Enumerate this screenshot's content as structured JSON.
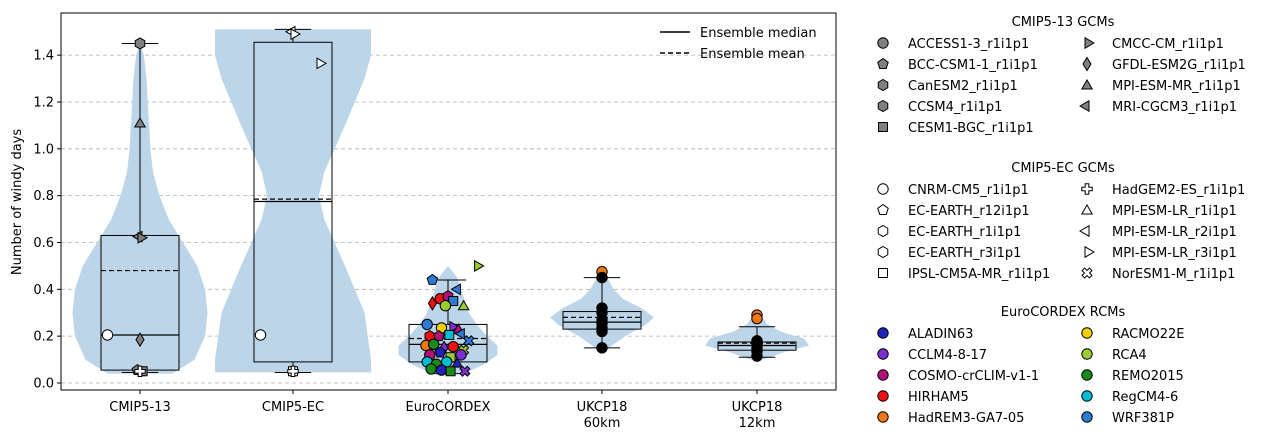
{
  "chart_data": {
    "type": "violin",
    "title": "",
    "ylabel": "Number of windy days",
    "xlabel": "",
    "ylim": [
      -0.03,
      1.58
    ],
    "yticks": [
      0.0,
      0.2,
      0.4,
      0.6,
      0.8,
      1.0,
      1.2,
      1.4
    ],
    "grid": "horizontal dashed",
    "categories": [
      {
        "label": "CMIP5-13",
        "label2": ""
      },
      {
        "label": "CMIP5-EC",
        "label2": ""
      },
      {
        "label": "EuroCORDEX",
        "label2": ""
      },
      {
        "label": "UKCP18",
        "label2": "60km"
      },
      {
        "label": "UKCP18",
        "label2": "12km"
      }
    ],
    "line_legend": {
      "placement": "top-right",
      "median_label": "Ensemble median",
      "mean_label": "Ensemble mean"
    },
    "boxes": [
      {
        "q1": 0.055,
        "median": 0.205,
        "q3": 0.63,
        "mean": 0.48,
        "wlow": 0.045,
        "whigh": 1.45
      },
      {
        "q1": 0.09,
        "median": 0.775,
        "q3": 1.455,
        "mean": 0.785,
        "wlow": 0.045,
        "whigh": 1.51
      },
      {
        "q1": 0.09,
        "median": 0.165,
        "q3": 0.25,
        "mean": 0.19,
        "wlow": 0.04,
        "whigh": 0.44
      },
      {
        "q1": 0.23,
        "median": 0.26,
        "q3": 0.305,
        "mean": 0.28,
        "wlow": 0.15,
        "whigh": 0.45
      },
      {
        "q1": 0.14,
        "median": 0.16,
        "q3": 0.175,
        "mean": 0.17,
        "wlow": 0.11,
        "whigh": 0.24
      }
    ],
    "violins": [
      {
        "ys": [
          0.04,
          0.1,
          0.2,
          0.3,
          0.4,
          0.5,
          0.6,
          0.7,
          0.8,
          0.9,
          1.0,
          1.1,
          1.2,
          1.3,
          1.4,
          1.45
        ],
        "ws": [
          0.25,
          0.42,
          0.5,
          0.52,
          0.5,
          0.44,
          0.33,
          0.22,
          0.15,
          0.1,
          0.08,
          0.07,
          0.06,
          0.05,
          0.03,
          0.0
        ]
      },
      {
        "ys": [
          0.045,
          0.1,
          0.3,
          0.5,
          0.7,
          0.8,
          0.9,
          1.1,
          1.3,
          1.4,
          1.51
        ],
        "ws": [
          0.6,
          0.6,
          0.55,
          0.4,
          0.24,
          0.2,
          0.24,
          0.4,
          0.55,
          0.6,
          0.6
        ]
      },
      {
        "ys": [
          0.04,
          0.08,
          0.12,
          0.16,
          0.2,
          0.25,
          0.3,
          0.35,
          0.4,
          0.45,
          0.5
        ],
        "ws": [
          0.12,
          0.28,
          0.38,
          0.38,
          0.3,
          0.22,
          0.16,
          0.13,
          0.1,
          0.07,
          0.0
        ]
      },
      {
        "ys": [
          0.15,
          0.2,
          0.25,
          0.28,
          0.32,
          0.36,
          0.4,
          0.45,
          0.48
        ],
        "ws": [
          0.05,
          0.18,
          0.34,
          0.4,
          0.3,
          0.16,
          0.09,
          0.04,
          0.0
        ]
      },
      {
        "ys": [
          0.1,
          0.13,
          0.16,
          0.19,
          0.22,
          0.25,
          0.28,
          0.3
        ],
        "ws": [
          0.05,
          0.2,
          0.4,
          0.36,
          0.18,
          0.08,
          0.04,
          0.0
        ]
      }
    ],
    "points": [
      {
        "cat": 0,
        "dx": 0.0,
        "y": 1.45,
        "marker": "hexagon",
        "color": "#808080"
      },
      {
        "cat": 0,
        "dx": 0.0,
        "y": 1.11,
        "marker": "triangle-up",
        "color": "#808080"
      },
      {
        "cat": 0,
        "dx": 0.0,
        "y": 0.625,
        "marker": "triangle-left",
        "color": "#808080"
      },
      {
        "cat": 0,
        "dx": 0.0,
        "y": 0.62,
        "marker": "triangle-right",
        "color": "#808080"
      },
      {
        "cat": 0,
        "dx": 0.0,
        "y": 0.185,
        "marker": "diamond",
        "color": "#808080"
      },
      {
        "cat": 0,
        "dx": -0.25,
        "y": 0.205,
        "marker": "circle",
        "color": "#ffffff"
      },
      {
        "cat": 0,
        "dx": -0.02,
        "y": 0.055,
        "marker": "pentagon",
        "color": "#808080"
      },
      {
        "cat": 0,
        "dx": 0.02,
        "y": 0.05,
        "marker": "square",
        "color": "#808080"
      },
      {
        "cat": 0,
        "dx": 0.0,
        "y": 0.05,
        "marker": "plus",
        "color": "#ffffff"
      },
      {
        "cat": 1,
        "dx": -0.25,
        "y": 0.205,
        "marker": "circle",
        "color": "#ffffff"
      },
      {
        "cat": 1,
        "dx": 0.0,
        "y": 1.5,
        "marker": "triangle-left",
        "color": "#ffffff"
      },
      {
        "cat": 1,
        "dx": 0.0,
        "y": 1.49,
        "marker": "triangle-right",
        "color": "#ffffff"
      },
      {
        "cat": 1,
        "dx": 0.2,
        "y": 1.365,
        "marker": "triangle-right",
        "color": "#ffffff"
      },
      {
        "cat": 1,
        "dx": 0.0,
        "y": 0.05,
        "marker": "square",
        "color": "#ffffff"
      },
      {
        "cat": 1,
        "dx": 0.0,
        "y": 0.05,
        "marker": "plus",
        "color": "#ffffff"
      },
      {
        "cat": 2,
        "dx": -0.12,
        "y": 0.44,
        "marker": "pentagon",
        "color": "#2e7bd6"
      },
      {
        "cat": 2,
        "dx": 0.22,
        "y": 0.5,
        "marker": "triangle-right",
        "color": "#9acd32"
      },
      {
        "cat": 2,
        "dx": 0.08,
        "y": 0.4,
        "marker": "triangle-left",
        "color": "#2e7bd6"
      },
      {
        "cat": 2,
        "dx": -0.12,
        "y": 0.34,
        "marker": "diamond",
        "color": "#ee1111"
      },
      {
        "cat": 2,
        "dx": -0.06,
        "y": 0.36,
        "marker": "circle",
        "color": "#ee1111"
      },
      {
        "cat": 2,
        "dx": 0.0,
        "y": 0.37,
        "marker": "hexagon",
        "color": "#b0127a"
      },
      {
        "cat": 2,
        "dx": 0.04,
        "y": 0.35,
        "marker": "square",
        "color": "#2e7bd6"
      },
      {
        "cat": 2,
        "dx": -0.02,
        "y": 0.33,
        "marker": "circle",
        "color": "#9acd32"
      },
      {
        "cat": 2,
        "dx": 0.12,
        "y": 0.33,
        "marker": "triangle-up",
        "color": "#9acd32"
      },
      {
        "cat": 2,
        "dx": -0.16,
        "y": 0.25,
        "marker": "circle",
        "color": "#2e7bd6"
      },
      {
        "cat": 2,
        "dx": -0.05,
        "y": 0.235,
        "marker": "circle",
        "color": "#f0d000"
      },
      {
        "cat": 2,
        "dx": 0.03,
        "y": 0.24,
        "marker": "triangle-right",
        "color": "#7b2fcf"
      },
      {
        "cat": 2,
        "dx": 0.08,
        "y": 0.23,
        "marker": "triangle-up",
        "color": "#b0127a"
      },
      {
        "cat": 2,
        "dx": -0.14,
        "y": 0.2,
        "marker": "hexagon",
        "color": "#ee1111"
      },
      {
        "cat": 2,
        "dx": -0.07,
        "y": 0.2,
        "marker": "pentagon",
        "color": "#b0127a"
      },
      {
        "cat": 2,
        "dx": 0.01,
        "y": 0.205,
        "marker": "square",
        "color": "#00bcd4"
      },
      {
        "cat": 2,
        "dx": 0.11,
        "y": 0.21,
        "marker": "triangle-left",
        "color": "#2e7bd6"
      },
      {
        "cat": 2,
        "dx": 0.16,
        "y": 0.18,
        "marker": "cross",
        "color": "#2e7bd6"
      },
      {
        "cat": 2,
        "dx": -0.17,
        "y": 0.16,
        "marker": "circle",
        "color": "#ee7711"
      },
      {
        "cat": 2,
        "dx": -0.11,
        "y": 0.165,
        "marker": "circle",
        "color": "#1a8a1a"
      },
      {
        "cat": 2,
        "dx": -0.03,
        "y": 0.15,
        "marker": "diamond",
        "color": "#7b2fcf"
      },
      {
        "cat": 2,
        "dx": 0.04,
        "y": 0.155,
        "marker": "circle",
        "color": "#ee1111"
      },
      {
        "cat": 2,
        "dx": 0.12,
        "y": 0.14,
        "marker": "cross",
        "color": "#9acd32"
      },
      {
        "cat": 2,
        "dx": -0.14,
        "y": 0.12,
        "marker": "circle",
        "color": "#b0127a"
      },
      {
        "cat": 2,
        "dx": -0.06,
        "y": 0.13,
        "marker": "pentagon",
        "color": "#2222bb"
      },
      {
        "cat": 2,
        "dx": 0.02,
        "y": 0.11,
        "marker": "square",
        "color": "#9acd32"
      },
      {
        "cat": 2,
        "dx": 0.1,
        "y": 0.12,
        "marker": "circle",
        "color": "#7b2fcf"
      },
      {
        "cat": 2,
        "dx": -0.16,
        "y": 0.09,
        "marker": "circle",
        "color": "#00bcd4"
      },
      {
        "cat": 2,
        "dx": -0.09,
        "y": 0.08,
        "marker": "circle",
        "color": "#1a8a1a"
      },
      {
        "cat": 2,
        "dx": -0.01,
        "y": 0.09,
        "marker": "circle",
        "color": "#00bcd4"
      },
      {
        "cat": 2,
        "dx": 0.07,
        "y": 0.085,
        "marker": "triangle-up",
        "color": "#2222bb"
      },
      {
        "cat": 2,
        "dx": -0.13,
        "y": 0.06,
        "marker": "circle",
        "color": "#1a8a1a"
      },
      {
        "cat": 2,
        "dx": -0.05,
        "y": 0.055,
        "marker": "circle",
        "color": "#2222bb"
      },
      {
        "cat": 2,
        "dx": 0.02,
        "y": 0.05,
        "marker": "square",
        "color": "#1a8a1a"
      },
      {
        "cat": 2,
        "dx": 0.13,
        "y": 0.05,
        "marker": "cross",
        "color": "#7b2fcf"
      },
      {
        "cat": 3,
        "dx": 0.0,
        "y": 0.475,
        "marker": "circle",
        "color": "#ee7711"
      },
      {
        "cat": 3,
        "dx": 0.0,
        "y": 0.45,
        "marker": "circle",
        "color": "#000000"
      },
      {
        "cat": 3,
        "dx": 0.0,
        "y": 0.32,
        "marker": "circle",
        "color": "#000000"
      },
      {
        "cat": 3,
        "dx": 0.0,
        "y": 0.3,
        "marker": "circle",
        "color": "#000000"
      },
      {
        "cat": 3,
        "dx": 0.0,
        "y": 0.27,
        "marker": "circle",
        "color": "#000000"
      },
      {
        "cat": 3,
        "dx": 0.0,
        "y": 0.255,
        "marker": "circle",
        "color": "#000000"
      },
      {
        "cat": 3,
        "dx": 0.0,
        "y": 0.235,
        "marker": "circle",
        "color": "#000000"
      },
      {
        "cat": 3,
        "dx": 0.0,
        "y": 0.22,
        "marker": "circle",
        "color": "#000000"
      },
      {
        "cat": 3,
        "dx": 0.0,
        "y": 0.15,
        "marker": "circle",
        "color": "#000000"
      },
      {
        "cat": 4,
        "dx": 0.0,
        "y": 0.29,
        "marker": "circle",
        "color": "#ee7711"
      },
      {
        "cat": 4,
        "dx": 0.0,
        "y": 0.275,
        "marker": "circle",
        "color": "#ee7711"
      },
      {
        "cat": 4,
        "dx": 0.0,
        "y": 0.18,
        "marker": "circle",
        "color": "#000000"
      },
      {
        "cat": 4,
        "dx": 0.0,
        "y": 0.165,
        "marker": "circle",
        "color": "#000000"
      },
      {
        "cat": 4,
        "dx": 0.0,
        "y": 0.15,
        "marker": "circle",
        "color": "#000000"
      },
      {
        "cat": 4,
        "dx": 0.0,
        "y": 0.135,
        "marker": "circle",
        "color": "#000000"
      },
      {
        "cat": 4,
        "dx": 0.0,
        "y": 0.115,
        "marker": "circle",
        "color": "#000000"
      }
    ],
    "legends": [
      {
        "title": "CMIP5-13 GCMs",
        "items": [
          {
            "label": "ACCESS1-3_r1i1p1",
            "marker": "circle",
            "color": "#808080"
          },
          {
            "label": "CMCC-CM_r1i1p1",
            "marker": "triangle-right",
            "color": "#808080"
          },
          {
            "label": "BCC-CSM1-1_r1i1p1",
            "marker": "pentagon",
            "color": "#808080"
          },
          {
            "label": "GFDL-ESM2G_r1i1p1",
            "marker": "diamond",
            "color": "#808080"
          },
          {
            "label": "CanESM2_r1i1p1",
            "marker": "hexagon",
            "color": "#808080"
          },
          {
            "label": "MPI-ESM-MR_r1i1p1",
            "marker": "triangle-up",
            "color": "#808080"
          },
          {
            "label": "CCSM4_r1i1p1",
            "marker": "hexagon",
            "color": "#808080"
          },
          {
            "label": "MRI-CGCM3_r1i1p1",
            "marker": "triangle-left",
            "color": "#808080"
          },
          {
            "label": "CESM1-BGC_r1i1p1",
            "marker": "square",
            "color": "#808080"
          }
        ]
      },
      {
        "title": "CMIP5-EC GCMs",
        "items": [
          {
            "label": "CNRM-CM5_r1i1p1",
            "marker": "circle",
            "color": "#ffffff"
          },
          {
            "label": "HadGEM2-ES_r1i1p1",
            "marker": "plus",
            "color": "#ffffff"
          },
          {
            "label": "EC-EARTH_r12i1p1",
            "marker": "pentagon",
            "color": "#ffffff"
          },
          {
            "label": "MPI-ESM-LR_r1i1p1",
            "marker": "triangle-up",
            "color": "#ffffff"
          },
          {
            "label": "EC-EARTH_r1i1p1",
            "marker": "hexagon",
            "color": "#ffffff"
          },
          {
            "label": "MPI-ESM-LR_r2i1p1",
            "marker": "triangle-left",
            "color": "#ffffff"
          },
          {
            "label": "EC-EARTH_r3i1p1",
            "marker": "hexagon",
            "color": "#ffffff"
          },
          {
            "label": "MPI-ESM-LR_r3i1p1",
            "marker": "triangle-right",
            "color": "#ffffff"
          },
          {
            "label": "IPSL-CM5A-MR_r1i1p1",
            "marker": "square",
            "color": "#ffffff"
          },
          {
            "label": "NorESM1-M_r1i1p1",
            "marker": "cross",
            "color": "#ffffff"
          }
        ]
      },
      {
        "title": "EuroCORDEX RCMs",
        "items": [
          {
            "label": "ALADIN63",
            "marker": "circle",
            "color": "#2222bb"
          },
          {
            "label": "RACMO22E",
            "marker": "circle",
            "color": "#f0d000"
          },
          {
            "label": "CCLM4-8-17",
            "marker": "circle",
            "color": "#7b2fcf"
          },
          {
            "label": "RCA4",
            "marker": "circle",
            "color": "#9acd32"
          },
          {
            "label": "COSMO-crCLIM-v1-1",
            "marker": "circle",
            "color": "#b0127a"
          },
          {
            "label": "REMO2015",
            "marker": "circle",
            "color": "#1a8a1a"
          },
          {
            "label": "HIRHAM5",
            "marker": "circle",
            "color": "#ee1111"
          },
          {
            "label": "RegCM4-6",
            "marker": "circle",
            "color": "#00bcd4"
          },
          {
            "label": "HadREM3-GA7-05",
            "marker": "circle",
            "color": "#ee7711"
          },
          {
            "label": "WRF381P",
            "marker": "circle",
            "color": "#2e7bd6"
          }
        ]
      }
    ],
    "colors": {
      "violin": "#bcd5e9",
      "grid": "#b0b0b0"
    }
  }
}
